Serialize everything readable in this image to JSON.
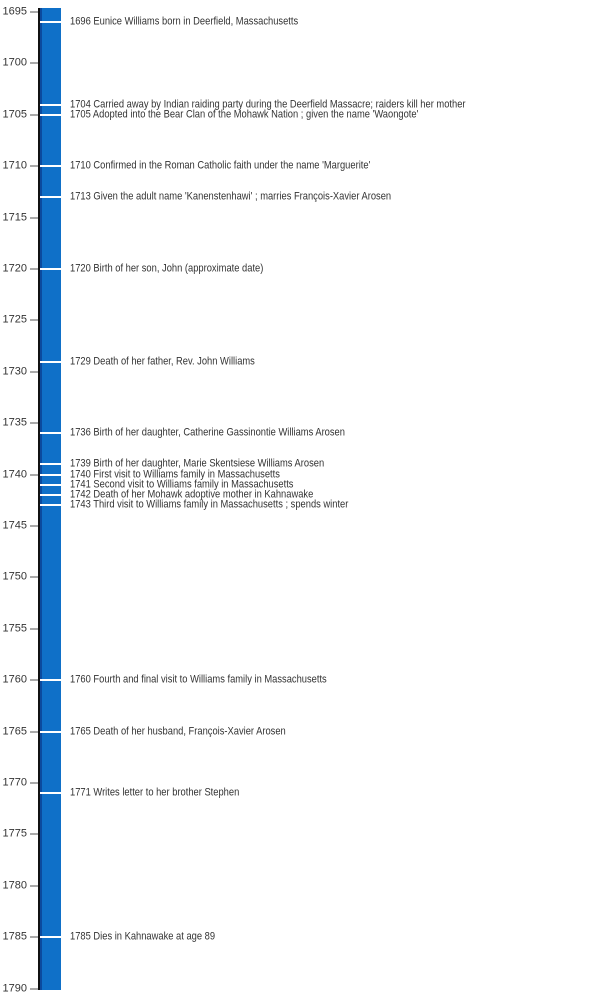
{
  "colors": {
    "background": "#ffffff",
    "bar_fill": "#0f70c8",
    "bar_shade": "#0b4a9e",
    "bar_border": "#111111",
    "event_divider": "#ffffff",
    "axis_text": "#333333",
    "event_text": "#333333",
    "tick": "#555555"
  },
  "chart_data": {
    "type": "timeline",
    "orientation": "vertical",
    "title": "",
    "ylim": [
      1695,
      1790
    ],
    "tick_step": 5,
    "tick_years": [
      1695,
      1700,
      1705,
      1710,
      1715,
      1720,
      1725,
      1730,
      1735,
      1740,
      1745,
      1750,
      1755,
      1760,
      1765,
      1770,
      1775,
      1780,
      1785,
      1790
    ],
    "events": [
      {
        "year": 1696,
        "text": "Eunice Williams born in Deerfield, Massachusetts"
      },
      {
        "year": 1704,
        "text": "Carried away by Indian raiding party during the Deerfield Massacre; raiders kill her mother"
      },
      {
        "year": 1705,
        "text": "Adopted into the Bear Clan of the Mohawk Nation ; given the name 'Waongote'"
      },
      {
        "year": 1710,
        "text": "Confirmed in the Roman Catholic faith under the name 'Marguerite'"
      },
      {
        "year": 1713,
        "text": "Given the adult name 'Kanenstenhawi' ; marries François-Xavier Arosen"
      },
      {
        "year": 1720,
        "text": "Birth of her son, John (approximate date)"
      },
      {
        "year": 1729,
        "text": "Death of her father, Rev. John Williams"
      },
      {
        "year": 1736,
        "text": "Birth of her daughter, Catherine Gassinontie Williams Arosen"
      },
      {
        "year": 1739,
        "text": "Birth of her daughter, Marie Skentsiese Williams Arosen"
      },
      {
        "year": 1740,
        "text": "First visit to Williams family in Massachusetts"
      },
      {
        "year": 1741,
        "text": "Second visit to Williams family in Massachusetts"
      },
      {
        "year": 1742,
        "text": "Death of her Mohawk adoptive mother in Kahnawake"
      },
      {
        "year": 1743,
        "text": "Third visit to Williams family in Massachusetts ; spends winter"
      },
      {
        "year": 1760,
        "text": "Fourth and final visit to Williams family in Massachusetts"
      },
      {
        "year": 1765,
        "text": "Death of her husband, François-Xavier Arosen"
      },
      {
        "year": 1771,
        "text": "Writes letter to her brother Stephen"
      },
      {
        "year": 1785,
        "text": "Dies in Kahnawake at age 89"
      }
    ]
  }
}
